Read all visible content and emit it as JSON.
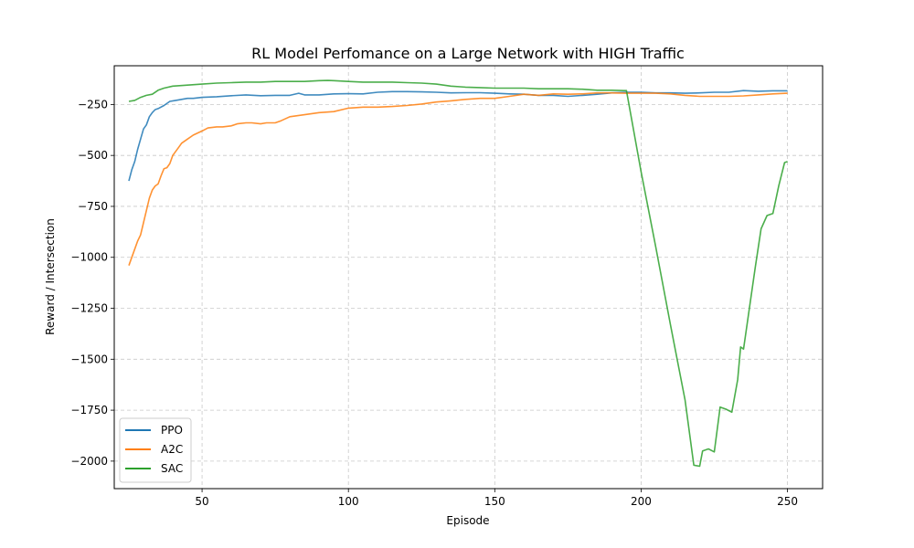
{
  "chart_data": {
    "type": "line",
    "title": "RL Model Perfomance on a Large Network with HIGH Traffic",
    "xlabel": "Episode",
    "ylabel": "Reward / Intersection",
    "xlim": [
      20,
      262
    ],
    "ylim": [
      -2135,
      -60
    ],
    "xticks": [
      50,
      100,
      150,
      200,
      250
    ],
    "yticks": [
      -2000,
      -1750,
      -1500,
      -1250,
      -1000,
      -750,
      -500,
      -250
    ],
    "grid": true,
    "legend_position": "lower-left",
    "series": [
      {
        "name": "PPO",
        "color": "#1f77b4",
        "x": [
          25,
          26,
          27,
          28,
          29,
          30,
          31,
          32,
          33,
          34,
          35,
          37,
          39,
          41,
          43,
          45,
          47,
          50,
          55,
          60,
          65,
          70,
          75,
          80,
          83,
          85,
          90,
          95,
          100,
          105,
          110,
          115,
          120,
          125,
          130,
          135,
          140,
          145,
          150,
          155,
          160,
          165,
          170,
          175,
          180,
          185,
          190,
          195,
          200,
          205,
          210,
          215,
          220,
          225,
          230,
          235,
          240,
          245,
          250
        ],
        "y": [
          -625,
          -570,
          -530,
          -470,
          -420,
          -370,
          -350,
          -310,
          -290,
          -275,
          -270,
          -255,
          -235,
          -230,
          -225,
          -220,
          -220,
          -215,
          -212,
          -207,
          -203,
          -207,
          -205,
          -205,
          -195,
          -203,
          -203,
          -198,
          -197,
          -198,
          -190,
          -187,
          -187,
          -188,
          -190,
          -193,
          -192,
          -192,
          -195,
          -198,
          -200,
          -205,
          -205,
          -210,
          -205,
          -200,
          -193,
          -190,
          -190,
          -193,
          -193,
          -195,
          -193,
          -190,
          -190,
          -182,
          -185,
          -183,
          -183
        ]
      },
      {
        "name": "A2C",
        "color": "#ff7f0e",
        "x": [
          25,
          26,
          27,
          28,
          29,
          30,
          31,
          32,
          33,
          34,
          35,
          36,
          37,
          38,
          39,
          40,
          41,
          42,
          43,
          45,
          47,
          50,
          52,
          55,
          57,
          60,
          62,
          65,
          67,
          70,
          72,
          75,
          77,
          80,
          85,
          90,
          95,
          100,
          105,
          110,
          115,
          120,
          125,
          130,
          135,
          140,
          145,
          150,
          155,
          160,
          165,
          170,
          175,
          180,
          185,
          190,
          195,
          200,
          205,
          210,
          215,
          220,
          225,
          230,
          235,
          240,
          245,
          250
        ],
        "y": [
          -1040,
          -1000,
          -960,
          -920,
          -890,
          -830,
          -770,
          -710,
          -670,
          -650,
          -640,
          -600,
          -565,
          -560,
          -540,
          -500,
          -480,
          -460,
          -440,
          -420,
          -400,
          -380,
          -365,
          -360,
          -360,
          -355,
          -345,
          -340,
          -340,
          -345,
          -340,
          -340,
          -330,
          -310,
          -300,
          -290,
          -285,
          -268,
          -263,
          -263,
          -260,
          -255,
          -248,
          -238,
          -232,
          -225,
          -220,
          -220,
          -210,
          -200,
          -205,
          -198,
          -200,
          -198,
          -193,
          -193,
          -195,
          -195,
          -195,
          -198,
          -205,
          -210,
          -210,
          -210,
          -208,
          -203,
          -198,
          -195
        ]
      },
      {
        "name": "SAC",
        "color": "#2ca02c",
        "x": [
          25,
          27,
          29,
          31,
          33,
          35,
          37,
          40,
          45,
          50,
          55,
          60,
          65,
          70,
          75,
          80,
          85,
          90,
          93,
          95,
          100,
          105,
          110,
          115,
          120,
          125,
          130,
          135,
          140,
          145,
          150,
          155,
          160,
          165,
          170,
          175,
          180,
          185,
          190,
          194,
          195,
          200,
          205,
          210,
          215,
          218,
          220,
          221,
          223,
          225,
          227,
          229,
          231,
          233,
          234,
          235,
          237,
          239,
          241,
          243,
          245,
          247,
          249,
          250
        ],
        "y": [
          -235,
          -230,
          -215,
          -205,
          -200,
          -180,
          -170,
          -160,
          -155,
          -150,
          -145,
          -143,
          -140,
          -140,
          -137,
          -137,
          -137,
          -133,
          -132,
          -133,
          -137,
          -140,
          -140,
          -140,
          -143,
          -145,
          -150,
          -160,
          -165,
          -167,
          -170,
          -170,
          -170,
          -173,
          -173,
          -173,
          -175,
          -180,
          -180,
          -182,
          -182,
          -580,
          -950,
          -1330,
          -1700,
          -2020,
          -2025,
          -1950,
          -1940,
          -1955,
          -1735,
          -1745,
          -1760,
          -1600,
          -1440,
          -1450,
          -1250,
          -1050,
          -860,
          -795,
          -785,
          -650,
          -535,
          -530
        ]
      }
    ]
  }
}
